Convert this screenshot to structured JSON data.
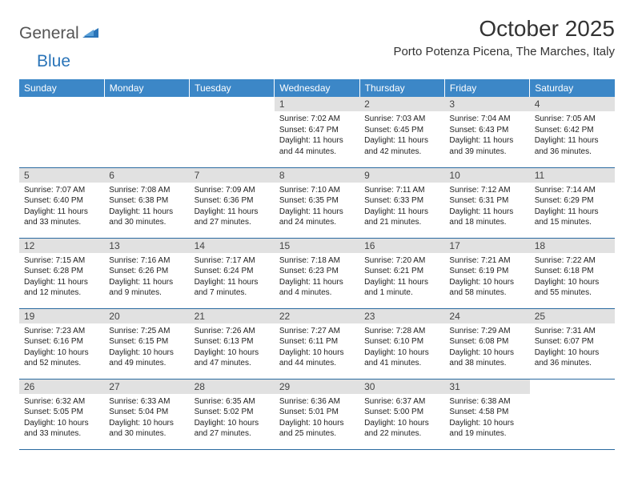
{
  "logo": {
    "part1": "General",
    "part2": "Blue"
  },
  "title": "October 2025",
  "location": "Porto Potenza Picena, The Marches, Italy",
  "colors": {
    "header_bg": "#3c87c7",
    "header_fg": "#ffffff",
    "daybar_bg": "#e1e1e1",
    "border": "#2a6aa0",
    "logo_accent": "#2a74b8"
  },
  "day_headers": [
    "Sunday",
    "Monday",
    "Tuesday",
    "Wednesday",
    "Thursday",
    "Friday",
    "Saturday"
  ],
  "weeks": [
    [
      {
        "n": "",
        "sr": "",
        "ss": "",
        "dl": ""
      },
      {
        "n": "",
        "sr": "",
        "ss": "",
        "dl": ""
      },
      {
        "n": "",
        "sr": "",
        "ss": "",
        "dl": ""
      },
      {
        "n": "1",
        "sr": "Sunrise: 7:02 AM",
        "ss": "Sunset: 6:47 PM",
        "dl": "Daylight: 11 hours and 44 minutes."
      },
      {
        "n": "2",
        "sr": "Sunrise: 7:03 AM",
        "ss": "Sunset: 6:45 PM",
        "dl": "Daylight: 11 hours and 42 minutes."
      },
      {
        "n": "3",
        "sr": "Sunrise: 7:04 AM",
        "ss": "Sunset: 6:43 PM",
        "dl": "Daylight: 11 hours and 39 minutes."
      },
      {
        "n": "4",
        "sr": "Sunrise: 7:05 AM",
        "ss": "Sunset: 6:42 PM",
        "dl": "Daylight: 11 hours and 36 minutes."
      }
    ],
    [
      {
        "n": "5",
        "sr": "Sunrise: 7:07 AM",
        "ss": "Sunset: 6:40 PM",
        "dl": "Daylight: 11 hours and 33 minutes."
      },
      {
        "n": "6",
        "sr": "Sunrise: 7:08 AM",
        "ss": "Sunset: 6:38 PM",
        "dl": "Daylight: 11 hours and 30 minutes."
      },
      {
        "n": "7",
        "sr": "Sunrise: 7:09 AM",
        "ss": "Sunset: 6:36 PM",
        "dl": "Daylight: 11 hours and 27 minutes."
      },
      {
        "n": "8",
        "sr": "Sunrise: 7:10 AM",
        "ss": "Sunset: 6:35 PM",
        "dl": "Daylight: 11 hours and 24 minutes."
      },
      {
        "n": "9",
        "sr": "Sunrise: 7:11 AM",
        "ss": "Sunset: 6:33 PM",
        "dl": "Daylight: 11 hours and 21 minutes."
      },
      {
        "n": "10",
        "sr": "Sunrise: 7:12 AM",
        "ss": "Sunset: 6:31 PM",
        "dl": "Daylight: 11 hours and 18 minutes."
      },
      {
        "n": "11",
        "sr": "Sunrise: 7:14 AM",
        "ss": "Sunset: 6:29 PM",
        "dl": "Daylight: 11 hours and 15 minutes."
      }
    ],
    [
      {
        "n": "12",
        "sr": "Sunrise: 7:15 AM",
        "ss": "Sunset: 6:28 PM",
        "dl": "Daylight: 11 hours and 12 minutes."
      },
      {
        "n": "13",
        "sr": "Sunrise: 7:16 AM",
        "ss": "Sunset: 6:26 PM",
        "dl": "Daylight: 11 hours and 9 minutes."
      },
      {
        "n": "14",
        "sr": "Sunrise: 7:17 AM",
        "ss": "Sunset: 6:24 PM",
        "dl": "Daylight: 11 hours and 7 minutes."
      },
      {
        "n": "15",
        "sr": "Sunrise: 7:18 AM",
        "ss": "Sunset: 6:23 PM",
        "dl": "Daylight: 11 hours and 4 minutes."
      },
      {
        "n": "16",
        "sr": "Sunrise: 7:20 AM",
        "ss": "Sunset: 6:21 PM",
        "dl": "Daylight: 11 hours and 1 minute."
      },
      {
        "n": "17",
        "sr": "Sunrise: 7:21 AM",
        "ss": "Sunset: 6:19 PM",
        "dl": "Daylight: 10 hours and 58 minutes."
      },
      {
        "n": "18",
        "sr": "Sunrise: 7:22 AM",
        "ss": "Sunset: 6:18 PM",
        "dl": "Daylight: 10 hours and 55 minutes."
      }
    ],
    [
      {
        "n": "19",
        "sr": "Sunrise: 7:23 AM",
        "ss": "Sunset: 6:16 PM",
        "dl": "Daylight: 10 hours and 52 minutes."
      },
      {
        "n": "20",
        "sr": "Sunrise: 7:25 AM",
        "ss": "Sunset: 6:15 PM",
        "dl": "Daylight: 10 hours and 49 minutes."
      },
      {
        "n": "21",
        "sr": "Sunrise: 7:26 AM",
        "ss": "Sunset: 6:13 PM",
        "dl": "Daylight: 10 hours and 47 minutes."
      },
      {
        "n": "22",
        "sr": "Sunrise: 7:27 AM",
        "ss": "Sunset: 6:11 PM",
        "dl": "Daylight: 10 hours and 44 minutes."
      },
      {
        "n": "23",
        "sr": "Sunrise: 7:28 AM",
        "ss": "Sunset: 6:10 PM",
        "dl": "Daylight: 10 hours and 41 minutes."
      },
      {
        "n": "24",
        "sr": "Sunrise: 7:29 AM",
        "ss": "Sunset: 6:08 PM",
        "dl": "Daylight: 10 hours and 38 minutes."
      },
      {
        "n": "25",
        "sr": "Sunrise: 7:31 AM",
        "ss": "Sunset: 6:07 PM",
        "dl": "Daylight: 10 hours and 36 minutes."
      }
    ],
    [
      {
        "n": "26",
        "sr": "Sunrise: 6:32 AM",
        "ss": "Sunset: 5:05 PM",
        "dl": "Daylight: 10 hours and 33 minutes."
      },
      {
        "n": "27",
        "sr": "Sunrise: 6:33 AM",
        "ss": "Sunset: 5:04 PM",
        "dl": "Daylight: 10 hours and 30 minutes."
      },
      {
        "n": "28",
        "sr": "Sunrise: 6:35 AM",
        "ss": "Sunset: 5:02 PM",
        "dl": "Daylight: 10 hours and 27 minutes."
      },
      {
        "n": "29",
        "sr": "Sunrise: 6:36 AM",
        "ss": "Sunset: 5:01 PM",
        "dl": "Daylight: 10 hours and 25 minutes."
      },
      {
        "n": "30",
        "sr": "Sunrise: 6:37 AM",
        "ss": "Sunset: 5:00 PM",
        "dl": "Daylight: 10 hours and 22 minutes."
      },
      {
        "n": "31",
        "sr": "Sunrise: 6:38 AM",
        "ss": "Sunset: 4:58 PM",
        "dl": "Daylight: 10 hours and 19 minutes."
      },
      {
        "n": "",
        "sr": "",
        "ss": "",
        "dl": ""
      }
    ]
  ]
}
